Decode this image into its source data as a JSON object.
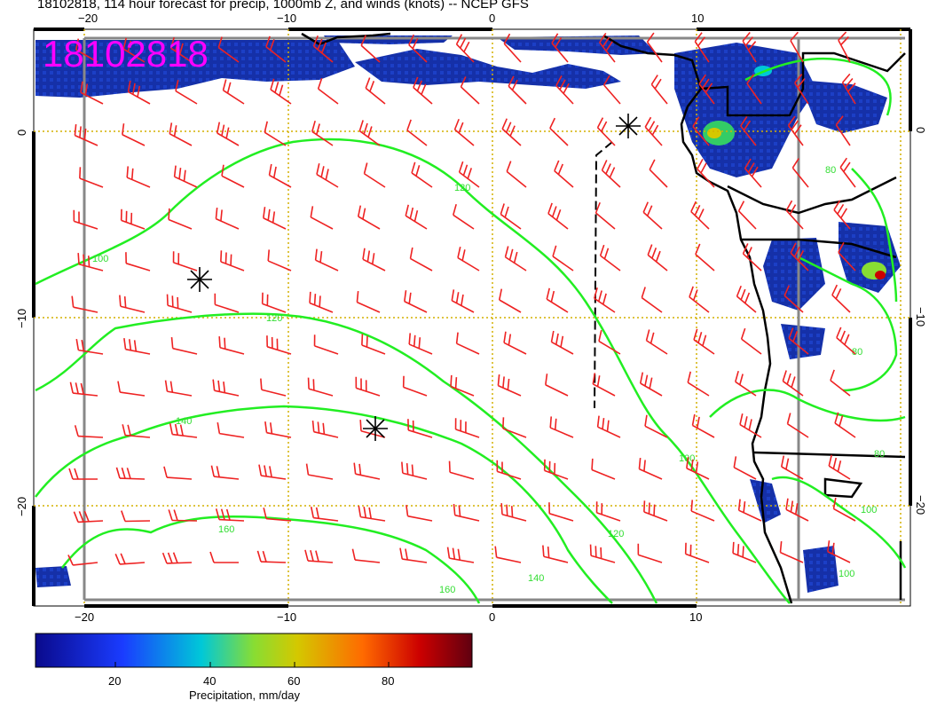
{
  "title": "18102818, 114 hour forecast for precip, 1000mb Z, and winds (knots) -- NCEP GFS",
  "stamp": "18102818",
  "map": {
    "lon_ticks_top": [
      "−20",
      "−10",
      "0",
      "10"
    ],
    "lon_ticks_bottom": [
      "−20",
      "−10",
      "0",
      "10"
    ],
    "lat_ticks_left": [
      "0",
      "−10",
      "−20"
    ],
    "lat_ticks_right": [
      "0",
      "−10",
      "−20"
    ],
    "contour_labels": [
      "100",
      "120",
      "140",
      "160",
      "100",
      "120",
      "140",
      "160",
      "80",
      "80",
      "80",
      "80",
      "100",
      "100",
      "100"
    ],
    "colors": {
      "wind_barb": "#ee2222",
      "contour": "#22ee22",
      "grid": "#d4b000",
      "coast": "#000000"
    },
    "highs_markers": 3
  },
  "colorbar": {
    "label": "Precipitation, mm/day",
    "ticks": [
      "20",
      "40",
      "60",
      "80"
    ],
    "colors": [
      "#0a0a8c",
      "#1a3cff",
      "#00c8d8",
      "#88dd33",
      "#d4c800",
      "#ff6a00",
      "#cc0000",
      "#600010"
    ]
  }
}
